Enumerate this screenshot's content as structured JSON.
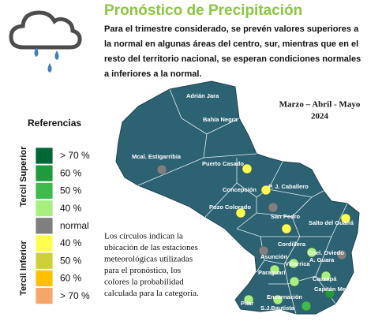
{
  "header": {
    "title": "Pronóstico de Precipitación",
    "description": [
      "Para el trimestre considerado, se prevén valores superiores a",
      "la normal en algunas áreas del centro, sur, mientras que en el",
      "resto del territorio nacional, se esperan condiciones normales",
      "a inferiores a la normal."
    ]
  },
  "period": {
    "months": "Marzo – Abril - Mayo",
    "year": "2024"
  },
  "legend": {
    "title": "Referencias",
    "groups": [
      "Tercil Superior",
      "Tercil Inferior"
    ],
    "items": [
      {
        "label": "> 70 %",
        "color": "#006837"
      },
      {
        "label": "60 %",
        "color": "#1f9a3c"
      },
      {
        "label": "50 %",
        "color": "#3dbb4c"
      },
      {
        "label": "40 %",
        "color": "#a8f07e"
      },
      {
        "label": "normal",
        "color": "#7f7f7f"
      },
      {
        "label": "40 %",
        "color": "#ffff4f"
      },
      {
        "label": "50 %",
        "color": "#cfcf3a"
      },
      {
        "label": "60 %",
        "color": "#ffc000"
      },
      {
        "label": "> 70 %",
        "color": "#f7a66a"
      }
    ]
  },
  "map": {
    "places": [
      "Adrián Jara",
      "Bahía Negra",
      "Mcal. Estigarribia",
      "Puerto Casado",
      "Concepción",
      "P. J. Caballero",
      "Pozo Colorado",
      "San Pedro",
      "Salto del Guairá",
      "Cordillera",
      "Asunción",
      "Cnel. Oviedo",
      "A. Guara",
      "Villarrica",
      "Paraguarí",
      "Caazapá",
      "Capitán Meza",
      "Pilar",
      "Encarnación",
      "S.J.Bautista"
    ]
  },
  "note": [
    "Los círculos indican la",
    "ubicación de las estaciones",
    "meteorológicas utilizadas",
    "para el pronóstico, los",
    "colores la probabilidad",
    "calculada para la categoría."
  ]
}
